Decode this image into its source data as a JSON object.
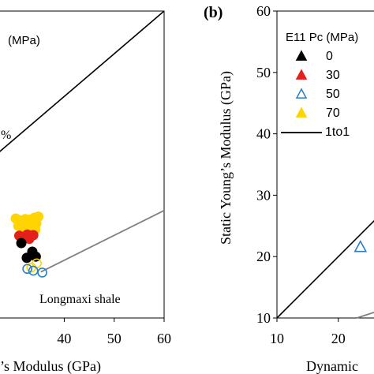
{
  "chart_data": [
    {
      "type": "scatter",
      "panel": "left (partially visible)",
      "xlabel": "’s Modulus (GPa)",
      "x_ticks": [
        40,
        50,
        60
      ],
      "xlim": [
        26.5,
        60
      ],
      "ylim": [
        10,
        60
      ],
      "annotations": {
        "legend_fragment": "(MPa)",
        "percent_fragment": "%",
        "sample_name": "Longmaxi shale"
      },
      "series": [
        {
          "marker": "circle-filled",
          "color": "#ffd400",
          "points": [
            [
              30.3,
              26.2
            ],
            [
              31.2,
              25.9
            ],
            [
              32.2,
              26.1
            ],
            [
              33.1,
              26.0
            ],
            [
              34.0,
              26.3
            ],
            [
              34.8,
              26.5
            ],
            [
              30.8,
              25.0
            ],
            [
              32.4,
              24.9
            ],
            [
              33.5,
              25.2
            ],
            [
              34.4,
              25.4
            ],
            [
              31.8,
              24.0
            ],
            [
              33.2,
              24.1
            ],
            [
              34.2,
              24.4
            ]
          ]
        },
        {
          "marker": "circle-filled",
          "color": "#e3201b",
          "points": [
            [
              31.0,
              23.4
            ],
            [
              32.6,
              23.6
            ],
            [
              33.8,
              23.5
            ],
            [
              31.6,
              22.8
            ],
            [
              33.0,
              22.9
            ]
          ]
        },
        {
          "marker": "circle-filled",
          "color": "#000000",
          "points": [
            [
              31.4,
              22.2
            ],
            [
              33.6,
              20.8
            ],
            [
              34.3,
              20.0
            ],
            [
              32.5,
              19.8
            ]
          ]
        },
        {
          "marker": "circle-open",
          "color": "#ffd400",
          "points": [
            [
              34.5,
              18.9
            ],
            [
              33.4,
              18.2
            ]
          ]
        },
        {
          "marker": "circle-open",
          "color": "#2b7fc4",
          "points": [
            [
              35.6,
              17.4
            ],
            [
              33.8,
              17.7
            ],
            [
              32.6,
              18.0
            ]
          ]
        }
      ],
      "lines": [
        {
          "name": "1:1",
          "color": "#000000",
          "x": [
            26.5,
            60
          ],
          "y": [
            36.7,
            60
          ]
        },
        {
          "name": "fit",
          "color": "#808080",
          "x": [
            35.3,
            60
          ],
          "y": [
            17.5,
            27.5
          ]
        }
      ]
    },
    {
      "type": "scatter",
      "panel": "right (partially visible)",
      "panel_label": "(b)",
      "ylabel": "Static Young’s Modulus (GPa)",
      "xlabel": "Dynamic",
      "x_ticks": [
        10,
        20
      ],
      "y_ticks": [
        10,
        20,
        30,
        40,
        50,
        60
      ],
      "xlim": [
        10,
        27
      ],
      "ylim": [
        10,
        60
      ],
      "legend": {
        "title": "E11 Pc (MPa)",
        "entries": [
          {
            "label": "0",
            "marker": "triangle-filled",
            "color": "#000000"
          },
          {
            "label": "30",
            "marker": "triangle-filled",
            "color": "#e3201b"
          },
          {
            "label": "50",
            "marker": "triangle-open",
            "color": "#2b7fc4"
          },
          {
            "label": "70",
            "marker": "triangle-filled",
            "color": "#ffd400"
          },
          {
            "label": "1to1",
            "marker": "line",
            "color": "#000000"
          }
        ]
      },
      "series": [
        {
          "marker": "triangle-open",
          "color": "#2b7fc4",
          "points": [
            [
              23.6,
              21.6
            ]
          ]
        }
      ],
      "lines": [
        {
          "name": "1:1",
          "color": "#000000",
          "x": [
            10,
            27
          ],
          "y": [
            10,
            27
          ]
        },
        {
          "name": "fit",
          "color": "#808080",
          "x": [
            23,
            27
          ],
          "y": [
            10,
            11.3
          ]
        }
      ]
    }
  ]
}
